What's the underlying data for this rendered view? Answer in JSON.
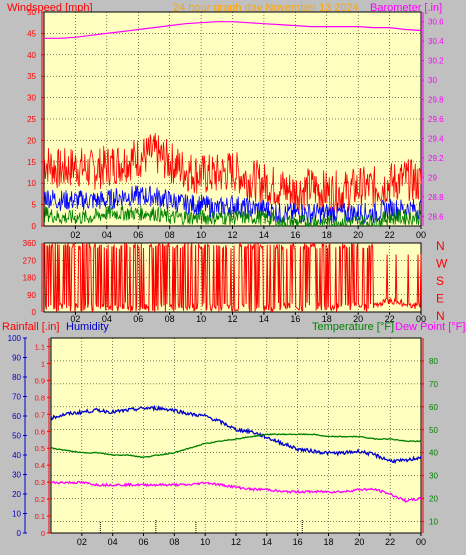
{
  "header": {
    "left_label": "Windspeed [mph]",
    "center_title": "24 hour graph day   November 13 2024",
    "right_label": "Barometer [.in]"
  },
  "colors": {
    "background": "#c0c0c0",
    "plot_bg": "#ffffc0",
    "axis_red": "#ff0000",
    "axis_magenta": "#ff00ff",
    "gust_red": "#ff0000",
    "wind_blue": "#0000ff",
    "wind_green": "#008000",
    "baro_magenta": "#ff00ff",
    "title_orange": "#ffa500",
    "humidity_blue": "#0000cc",
    "temp_green": "#008000",
    "dewpoint_magenta": "#ff00ff",
    "rain_black": "#000000"
  },
  "chart_data": [
    {
      "name_hint": "wind-barometer",
      "type": "line",
      "title": "24 hour graph day   November 13 2024",
      "ylabel": "Windspeed [mph]",
      "y2label": "Barometer [.in]",
      "xticks": [
        "02",
        "04",
        "06",
        "08",
        "10",
        "12",
        "14",
        "16",
        "18",
        "20",
        "22",
        "00"
      ],
      "ylim": [
        0,
        50
      ],
      "yticks": [
        0,
        5,
        10,
        15,
        20,
        25,
        30,
        35,
        40,
        45,
        50
      ],
      "y2lim": [
        28.5,
        30.7
      ],
      "y2ticks": [
        28.6,
        28.8,
        29,
        29.2,
        29.4,
        29.6,
        29.8,
        30,
        30.2,
        30.4,
        30.6
      ],
      "grid": true,
      "series": [
        {
          "kind": "barometer",
          "axis": "right",
          "x": [
            0,
            1,
            2,
            3,
            4,
            5,
            6,
            7,
            8,
            9,
            10,
            11,
            12,
            13,
            14,
            15,
            16,
            17,
            18,
            19,
            20,
            21,
            22,
            23,
            24
          ],
          "values": [
            30.43,
            30.43,
            30.44,
            30.46,
            30.48,
            30.5,
            30.52,
            30.54,
            30.56,
            30.58,
            30.59,
            30.6,
            30.6,
            30.59,
            30.58,
            30.57,
            30.56,
            30.55,
            30.55,
            30.55,
            30.55,
            30.54,
            30.54,
            30.52,
            30.51
          ]
        },
        {
          "kind": "gust",
          "x": [
            0,
            1,
            2,
            3,
            4,
            5,
            6,
            7,
            8,
            9,
            10,
            11,
            12,
            13,
            14,
            15,
            16,
            17,
            18,
            19,
            20,
            21,
            22,
            23,
            24
          ],
          "values": [
            15,
            13,
            14,
            13,
            14,
            15,
            16,
            17,
            15,
            13,
            12,
            12,
            13,
            11,
            10,
            9,
            8,
            9,
            8,
            8,
            9,
            9,
            10,
            11,
            10
          ]
        },
        {
          "kind": "wind_avg",
          "x": [
            0,
            1,
            2,
            3,
            4,
            5,
            6,
            7,
            8,
            9,
            10,
            11,
            12,
            13,
            14,
            15,
            16,
            17,
            18,
            19,
            20,
            21,
            22,
            23,
            24
          ],
          "values": [
            7,
            6,
            6,
            6,
            6,
            7,
            7,
            7,
            6,
            5,
            5,
            4,
            5,
            4,
            4,
            3,
            3,
            3,
            3,
            3,
            3,
            3,
            4,
            4,
            4
          ]
        },
        {
          "kind": "wind_low",
          "x": [
            0,
            1,
            2,
            3,
            4,
            5,
            6,
            7,
            8,
            9,
            10,
            11,
            12,
            13,
            14,
            15,
            16,
            17,
            18,
            19,
            20,
            21,
            22,
            23,
            24
          ],
          "values": [
            3,
            2,
            2,
            2,
            3,
            3,
            3,
            3,
            2,
            2,
            2,
            2,
            2,
            2,
            2,
            1,
            1,
            1,
            1,
            1,
            1,
            1,
            2,
            2,
            2
          ]
        }
      ]
    },
    {
      "name_hint": "wind-direction",
      "type": "line",
      "xticks": [
        "02",
        "04",
        "06",
        "08",
        "10",
        "12",
        "14",
        "16",
        "18",
        "20",
        "22",
        "00"
      ],
      "ylim": [
        0,
        360
      ],
      "yticks": [
        0,
        90,
        180,
        270,
        360
      ],
      "right_labels": [
        "N",
        "W",
        "S",
        "E",
        "N"
      ],
      "series": [
        {
          "kind": "direction",
          "x": [
            0,
            1,
            2,
            3,
            4,
            5,
            6,
            7,
            8,
            9,
            10,
            11,
            12,
            13,
            14,
            15,
            16,
            17,
            18,
            19,
            20,
            21,
            22,
            23,
            24
          ],
          "values": [
            340,
            20,
            350,
            10,
            355,
            15,
            345,
            30,
            350,
            10,
            340,
            20,
            350,
            15,
            345,
            25,
            355,
            20,
            330,
            10,
            345,
            30,
            60,
            40,
            30
          ]
        }
      ]
    },
    {
      "name_hint": "rain-humidity-temp",
      "type": "line",
      "ylabel": "Rainfall [.in]",
      "ylabel2": "Humidity",
      "y2label": "Temperature [°F]",
      "y2label2": "Dew Point [°F]",
      "xticks": [
        "02",
        "04",
        "06",
        "08",
        "10",
        "12",
        "14",
        "16",
        "18",
        "20",
        "22",
        "00"
      ],
      "ylim_humidity": [
        0,
        100
      ],
      "yticks_humidity": [
        0,
        10,
        20,
        30,
        40,
        50,
        60,
        70,
        80,
        90,
        100
      ],
      "ylim_rain": [
        0,
        1.15
      ],
      "yticks_rain": [
        0,
        0.1,
        0.2,
        0.3,
        0.4,
        0.5,
        0.6,
        0.7,
        0.8,
        0.9,
        1,
        1.1
      ],
      "ylim_temp": [
        5,
        90
      ],
      "yticks_temp": [
        10,
        20,
        30,
        40,
        50,
        60,
        70,
        80
      ],
      "grid": true,
      "series": [
        {
          "kind": "humidity",
          "axis": "humidity",
          "x": [
            0,
            1,
            2,
            3,
            4,
            5,
            6,
            7,
            8,
            9,
            10,
            11,
            12,
            13,
            14,
            15,
            16,
            17,
            18,
            19,
            20,
            21,
            22,
            23,
            24
          ],
          "values": [
            59,
            61,
            62,
            63,
            62,
            63,
            64,
            64,
            63,
            61,
            60,
            57,
            53,
            52,
            49,
            46,
            43,
            42,
            41,
            41,
            42,
            40,
            37,
            37,
            39
          ]
        },
        {
          "kind": "temperature",
          "axis": "temp",
          "x": [
            0,
            1,
            2,
            3,
            4,
            5,
            6,
            7,
            8,
            9,
            10,
            11,
            12,
            13,
            14,
            15,
            16,
            17,
            18,
            19,
            20,
            21,
            22,
            23,
            24
          ],
          "values": [
            42,
            41,
            40,
            40,
            39,
            39,
            38,
            39,
            40,
            42,
            44,
            45,
            46,
            47,
            48,
            48,
            48,
            48,
            47,
            47,
            47,
            46,
            46,
            45,
            45
          ]
        },
        {
          "kind": "dew_point",
          "axis": "temp",
          "x": [
            0,
            1,
            2,
            3,
            4,
            5,
            6,
            7,
            8,
            9,
            10,
            11,
            12,
            13,
            14,
            15,
            16,
            17,
            18,
            19,
            20,
            21,
            22,
            23,
            24
          ],
          "values": [
            27,
            27,
            27,
            26,
            26,
            26,
            26,
            26,
            26,
            26,
            27,
            26,
            25,
            24,
            24,
            23,
            23,
            23,
            23,
            23,
            24,
            24,
            22,
            19,
            20
          ]
        },
        {
          "kind": "rain_marks",
          "axis": "rain",
          "x": [
            3.2,
            6.8,
            9.4,
            16.3
          ],
          "values": [
            0.01,
            0.02,
            0.01,
            0.02
          ]
        }
      ]
    }
  ],
  "panel3": {
    "rain_label": "Rainfall [.in]",
    "humidity_label": "Humidity",
    "temp_label": "Temperature [°F]",
    "dew_label": "Dew Point [°F]"
  }
}
